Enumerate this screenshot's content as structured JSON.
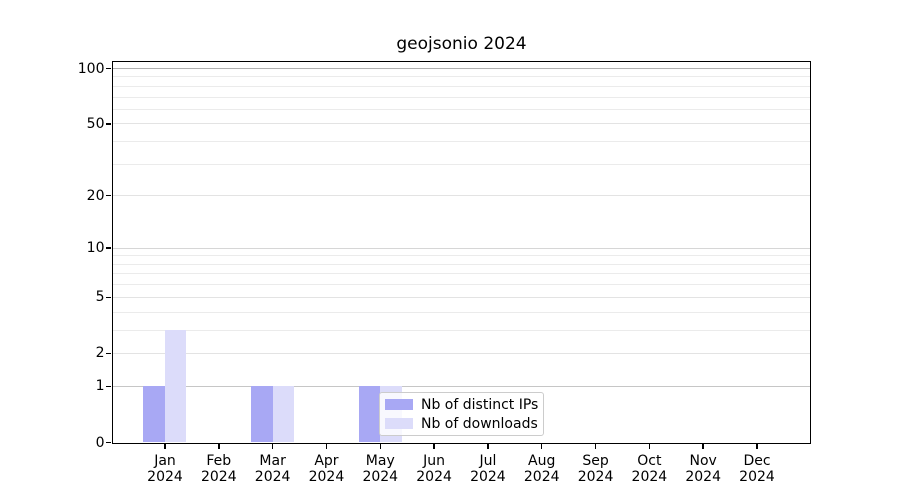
{
  "chart_data": {
    "type": "bar",
    "title": "geojsonio 2024",
    "xlabel": "",
    "ylabel": "",
    "yscale": "log1p",
    "grid": true,
    "legend_position": "lower center, inside plot",
    "yticks": [
      0,
      1,
      2,
      5,
      10,
      20,
      50,
      100
    ],
    "minor_gridlines": [
      3,
      4,
      6,
      7,
      8,
      9,
      30,
      40,
      60,
      70,
      80,
      90
    ],
    "ylim": [
      0,
      110
    ],
    "categories": [
      "Jan 2024",
      "Feb 2024",
      "Mar 2024",
      "Apr 2024",
      "May 2024",
      "Jun 2024",
      "Jul 2024",
      "Aug 2024",
      "Sep 2024",
      "Oct 2024",
      "Nov 2024",
      "Dec 2024"
    ],
    "series": [
      {
        "name": "Nb of distinct IPs",
        "color": "#a8a8f4",
        "values": [
          1,
          0,
          1,
          0,
          1,
          0,
          0,
          0,
          0,
          0,
          0,
          0
        ]
      },
      {
        "name": "Nb of downloads",
        "color": "#dcdcfa",
        "values": [
          3,
          0,
          1,
          0,
          1,
          0,
          0,
          0,
          0,
          0,
          0,
          0
        ]
      }
    ]
  },
  "colors": {
    "grid_minor": "#ebebeb",
    "grid_labeled": "#e3e3e3",
    "grid_one": "#c6c6c6",
    "grid_ten": "#d6d6d6",
    "grid_hundred": "#b0b0b0",
    "spine": "#000000",
    "text": "#000000",
    "legend_border": "#cccccc",
    "legend_background": "rgba(255,255,255,0.8)"
  }
}
